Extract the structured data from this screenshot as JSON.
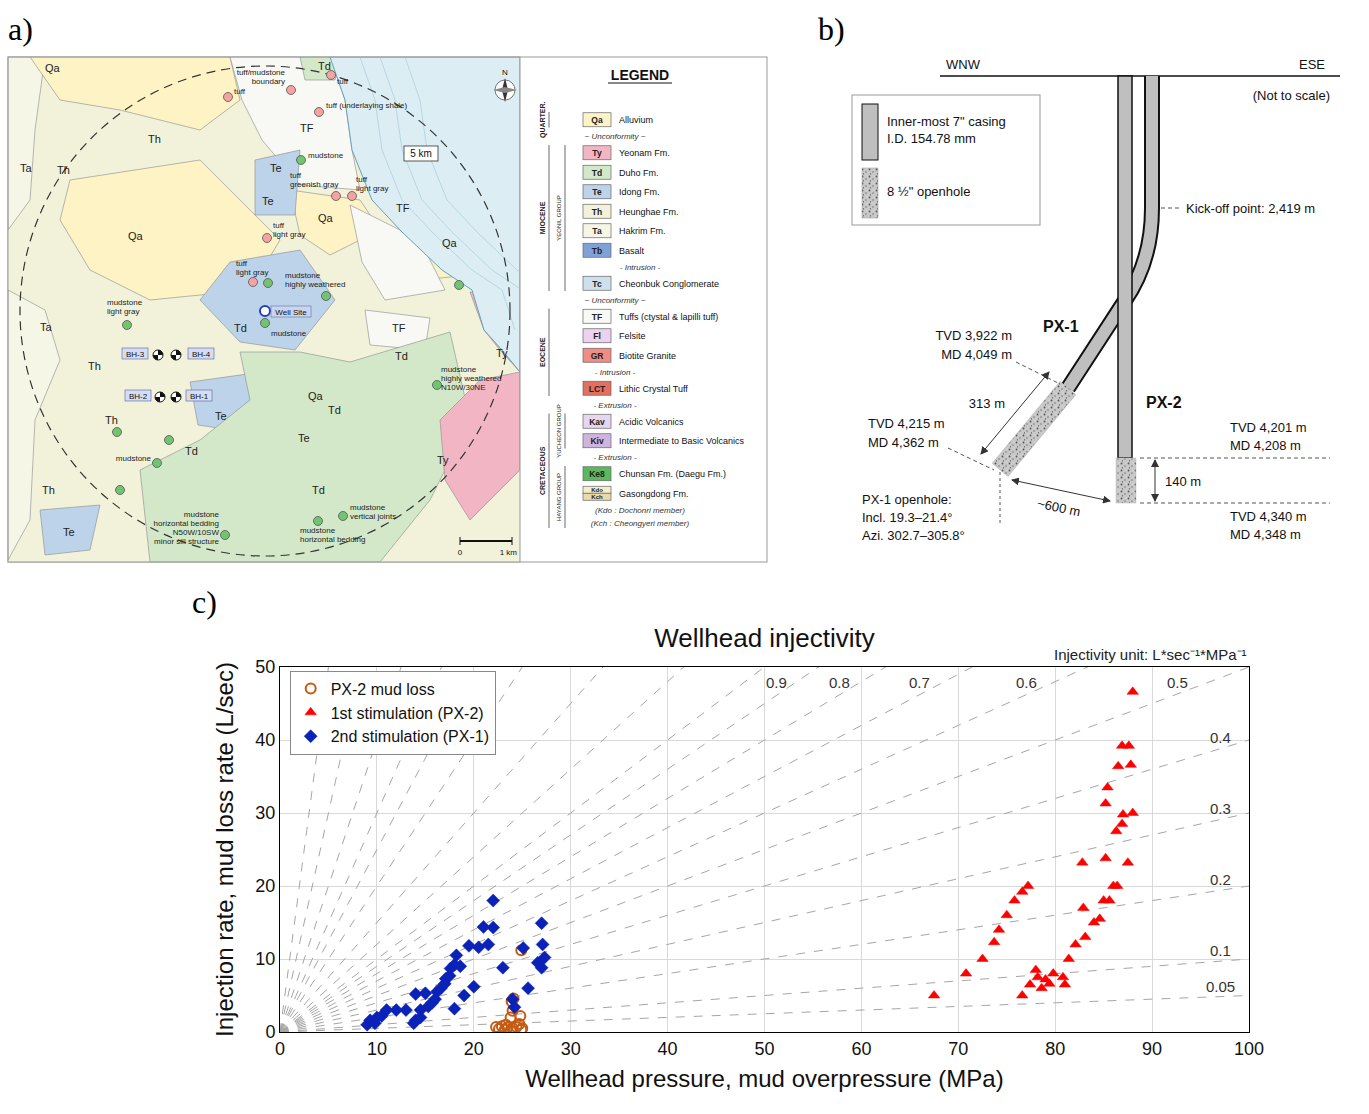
{
  "panels": [
    "a)",
    "b)",
    "c)"
  ],
  "map": {
    "units_on_map": [
      "Qa",
      "Td",
      "TF",
      "Th",
      "Ta",
      "Th",
      "Te",
      "Te",
      "Qa",
      "TF",
      "Qa",
      "Qa",
      "Ta",
      "Th",
      "Td",
      "TF",
      "Td",
      "Ty",
      "Te",
      "Th",
      "Qa",
      "Td",
      "Td",
      "Te",
      "Ty",
      "Td",
      "Th",
      "Te"
    ],
    "samples": [
      {
        "color": "#f4a3a3",
        "label": [
          "tuff/mudstone",
          "boundary"
        ]
      },
      {
        "color": "#f4a3a3",
        "label": [
          "tuff"
        ]
      },
      {
        "color": "#f4a3a3",
        "label": [
          "tuff"
        ]
      },
      {
        "color": "#f4a3a3",
        "label": [
          "tuff (underlaying shale)"
        ]
      },
      {
        "color": "#72c472",
        "label": [
          "mudstone"
        ]
      },
      {
        "color": "#f4a3a3",
        "label": [
          "tuff",
          "greenish gray"
        ]
      },
      {
        "color": "#f4a3a3",
        "label": [
          "tuff",
          "light gray"
        ]
      },
      {
        "color": "#f4a3a3",
        "label": [
          "tuff",
          "light gray"
        ]
      },
      {
        "color": "#f4a3a3",
        "label": [
          "tuff",
          "light gray"
        ]
      },
      {
        "color": "#72c472",
        "label": [
          "mudstone",
          "highly weathered"
        ]
      },
      {
        "color": "#72c472"
      },
      {
        "color": "#72c472"
      },
      {
        "color": "#72c472",
        "label": [
          "mudstone"
        ]
      },
      {
        "color": "#72c472",
        "label": [
          "mudstone",
          "light gray"
        ]
      },
      {
        "color": "#72c472",
        "label": [
          "mudstone",
          "highly weathered",
          "N10W/30NE"
        ]
      },
      {
        "color": "#72c472"
      },
      {
        "color": "#72c472"
      },
      {
        "color": "#72c472",
        "label": [
          "mudstone"
        ]
      },
      {
        "color": "#72c472"
      },
      {
        "color": "#72c472",
        "label": [
          "mudstone",
          "horizontal bedding",
          "N50W/10SW",
          "minor sill structure"
        ]
      },
      {
        "color": "#72c472",
        "label": [
          "mudstone",
          "horizontal bedding"
        ]
      },
      {
        "color": "#72c472",
        "label": [
          "mudstone",
          "vertical joints"
        ]
      }
    ],
    "well_site": "Well Site",
    "boreholes": [
      "BH-3",
      "BH-4",
      "BH-2",
      "BH-1"
    ],
    "radius_label": "5 km",
    "north": "N",
    "scale": [
      "0",
      "1 km"
    ],
    "legend": {
      "title": "LEGEND",
      "rows": [
        {
          "period": "QUARTER.",
          "code": "Qa",
          "label": "Alluvium",
          "color": "#fdf3c4"
        },
        {
          "note": "~ Unconformity ~"
        },
        {
          "period": "MIOCENE",
          "group": "YEONIL GROUP",
          "code": "Ty",
          "label": "Yeonam Fm.",
          "color": "#f2b5c4"
        },
        {
          "period": "MIOCENE",
          "group": "YEONIL GROUP",
          "code": "Td",
          "label": "Duho Fm.",
          "color": "#d3e8c8"
        },
        {
          "period": "MIOCENE",
          "group": "YEONIL GROUP",
          "code": "Te",
          "label": "Idong Fm.",
          "color": "#bcd3ea"
        },
        {
          "period": "MIOCENE",
          "group": "YEONIL GROUP",
          "code": "Th",
          "label": "Heunghae Fm.",
          "color": "#f2f2da"
        },
        {
          "period": "MIOCENE",
          "group": "YEONIL GROUP",
          "code": "Ta",
          "label": "Hakrim Fm.",
          "color": "#f6f6e6"
        },
        {
          "period": "MIOCENE",
          "group": "YEONIL GROUP",
          "code": "Tb",
          "label": "Basalt",
          "color": "#7ea2d8"
        },
        {
          "period": "MIOCENE",
          "group": "YEONIL GROUP",
          "note": "- Intrusion -"
        },
        {
          "period": "MIOCENE",
          "group": "YEONIL GROUP",
          "code": "Tc",
          "label": "Cheonbuk Conglomerate",
          "color": "#cde0ec"
        },
        {
          "note": "~ Unconformity ~"
        },
        {
          "period": "EOCENE",
          "code": "TF",
          "label": "Tuffs (ctystal & lapilli tuff)",
          "color": "#f8f8f4"
        },
        {
          "period": "EOCENE",
          "code": "Fl",
          "label": "Felsite",
          "color": "#ecd2ee"
        },
        {
          "period": "EOCENE",
          "code": "GR",
          "label": "Biotite Granite",
          "color": "#f08c84"
        },
        {
          "period": "EOCENE",
          "note": "- Intrusion -"
        },
        {
          "period": "EOCENE",
          "code": "LCT",
          "label": "Lithic Crystal Tuff",
          "color": "#e36f5e"
        },
        {
          "note": "- Extrusion -"
        },
        {
          "period": "CRETACEOUS",
          "group": "YUCHEON GROUP",
          "code": "Kav",
          "label": "Acidic Volcanics",
          "color": "#e6d6ee"
        },
        {
          "period": "CRETACEOUS",
          "group": "YUCHEON GROUP",
          "code": "Kiv",
          "label": "Intermediate to Basic Volcanics",
          "color": "#cfb4e0"
        },
        {
          "period": "CRETACEOUS",
          "note": "- Extrusion -"
        },
        {
          "period": "CRETACEOUS",
          "group": "HAYANG GROUP",
          "code": "Ke8",
          "label": "Chunsan Fm. (Daegu Fm.)",
          "color": "#5cb85c"
        },
        {
          "period": "CRETACEOUS",
          "group": "HAYANG GROUP",
          "codes": [
            "Kdo",
            "Kch"
          ],
          "label": "Gasongdong Fm.",
          "colors": [
            "#f5ecc8",
            "#ecd9a8"
          ]
        },
        {
          "period": "CRETACEOUS",
          "group": "HAYANG GROUP",
          "note": "(Kdo : Dochonri member)"
        },
        {
          "period": "CRETACEOUS",
          "group": "HAYANG GROUP",
          "note": "(Kch : Cheongyeri member)"
        }
      ]
    }
  },
  "diagram": {
    "directions": [
      "WNW",
      "ESE"
    ],
    "note": "(Not to scale)",
    "legend": [
      {
        "symbol": "casing",
        "lines": [
          "Inner-most 7\" casing",
          "I.D. 154.78 mm"
        ]
      },
      {
        "symbol": "openhole",
        "lines": [
          "8 ½\" openhole"
        ]
      }
    ],
    "kickoff": "Kick-off point: 2,419 m",
    "wells": [
      "PX-1",
      "PX-2"
    ],
    "px1_top": [
      "TVD 3,922 m",
      "MD 4,049 m"
    ],
    "px1_length": "313 m",
    "px1_bottom": [
      "TVD 4,215 m",
      "MD 4,362 m"
    ],
    "px1_openhole": [
      "PX-1 openhole:",
      "Incl. 19.3–21.4°",
      "Azi. 302.7–305.8°"
    ],
    "spacing": "~600 m",
    "px2_top": [
      "TVD 4,201 m",
      "MD 4,208 m"
    ],
    "px2_length": "140 m",
    "px2_bottom": [
      "TVD 4,340 m",
      "MD 4,348 m"
    ]
  },
  "chart_data": {
    "type": "scatter",
    "title": "Wellhead injectivity",
    "note": "Injectivity unit: L*sec⁻¹*MPa⁻¹",
    "x_label": "Wellhead pressure, mud overpressure (MPa)",
    "y_label": "Injection rate, mud loss rate (L/sec)",
    "xlim": [
      0,
      100
    ],
    "xticks": [
      0,
      10,
      20,
      30,
      40,
      50,
      60,
      70,
      80,
      90,
      100
    ],
    "ylim": [
      0,
      50
    ],
    "yticks": [
      0,
      10,
      20,
      30,
      40,
      50
    ],
    "grid": true,
    "legend": "top-left",
    "reference_lines": {
      "line_style": "dash",
      "color": "#a6a6a6",
      "values": [
        0.9,
        0.8,
        0.7,
        0.6,
        0.5,
        0.4,
        0.3,
        0.2,
        0.1,
        0.05
      ],
      "unlabeled_values": [
        1,
        1.2,
        1.5,
        2,
        2.5,
        3,
        4,
        6,
        10
      ]
    },
    "series": [
      {
        "name": "PX-2 mud loss",
        "color": "#c55a11",
        "marker": "circle-open",
        "x": [
          22.3,
          22.6,
          22.9,
          23.2,
          23.5,
          23.8,
          24.0,
          23.8,
          24.0,
          24.1,
          23.9,
          24.4,
          24.7,
          24.8,
          24.9,
          24.9,
          25.0,
          23.3
        ],
        "values": [
          0.7,
          0.4,
          0.8,
          0.3,
          0.6,
          0.2,
          0.5,
          2.0,
          2.9,
          4.6,
          4.2,
          0.7,
          1.1,
          2.2,
          0.3,
          11.2,
          0.5,
          1.0
        ]
      },
      {
        "name": "1st stimulation (PX-2)",
        "color": "#ff0000",
        "marker": "triangle-up",
        "x": [
          67.5,
          70.8,
          72.5,
          73.7,
          74.2,
          75.0,
          75.8,
          76.6,
          77.2,
          76.6,
          77.4,
          78.0,
          78.2,
          78.6,
          79.0,
          79.4,
          79.8,
          80.8,
          81.0,
          81.4,
          82.1,
          82.8,
          82.9,
          83.1,
          84.0,
          84.6,
          85.0,
          85.2,
          85.6,
          85.4,
          85.2,
          86.0,
          86.3,
          86.4,
          86.5,
          87.0,
          86.9,
          86.9,
          87.5,
          87.6,
          87.8,
          88.0,
          88.0
        ],
        "values": [
          5.0,
          8.0,
          10.0,
          12.3,
          14.0,
          16.0,
          18.0,
          19.2,
          20.0,
          5.0,
          6.5,
          8.5,
          7.5,
          6.0,
          7.2,
          6.6,
          8.0,
          7.5,
          6.5,
          10.0,
          12.0,
          23.2,
          17.0,
          13.0,
          15.0,
          15.5,
          18.0,
          23.8,
          18.0,
          33.5,
          31.3,
          20.0,
          27.5,
          20.0,
          36.4,
          29.8,
          28.5,
          39.2,
          23.2,
          39.2,
          36.6,
          30.0,
          46.6
        ]
      },
      {
        "name": "2nd stimulation (PX-1)",
        "color": "#0a22b8",
        "marker": "diamond",
        "x": [
          9.0,
          9.3,
          9.8,
          10.0,
          10.5,
          11.0,
          12.0,
          13.0,
          13.8,
          14.0,
          14.0,
          14.5,
          14.5,
          15.0,
          15.3,
          15.7,
          16.0,
          16.2,
          16.6,
          17.0,
          17.1,
          17.5,
          17.6,
          18.0,
          18.0,
          18.2,
          18.6,
          19.0,
          19.5,
          20.0,
          20.5,
          21.0,
          21.5,
          22.0,
          22.0,
          23.0,
          24.0,
          24.2,
          25.1,
          25.6,
          26.6,
          27.0,
          27.1,
          27.0,
          27.3
        ],
        "values": [
          1.0,
          1.6,
          1.2,
          2.0,
          2.2,
          3.0,
          3.0,
          3.0,
          1.2,
          1.6,
          5.2,
          2.0,
          3.0,
          5.3,
          3.5,
          4.0,
          4.5,
          5.5,
          6.0,
          6.6,
          7.3,
          7.7,
          8.7,
          3.2,
          9.2,
          10.5,
          9.0,
          5.0,
          11.8,
          6.2,
          11.6,
          14.4,
          12.0,
          14.3,
          18.0,
          8.8,
          4.5,
          3.4,
          11.5,
          6.0,
          9.5,
          8.8,
          12.0,
          14.9,
          10.2
        ]
      }
    ]
  }
}
